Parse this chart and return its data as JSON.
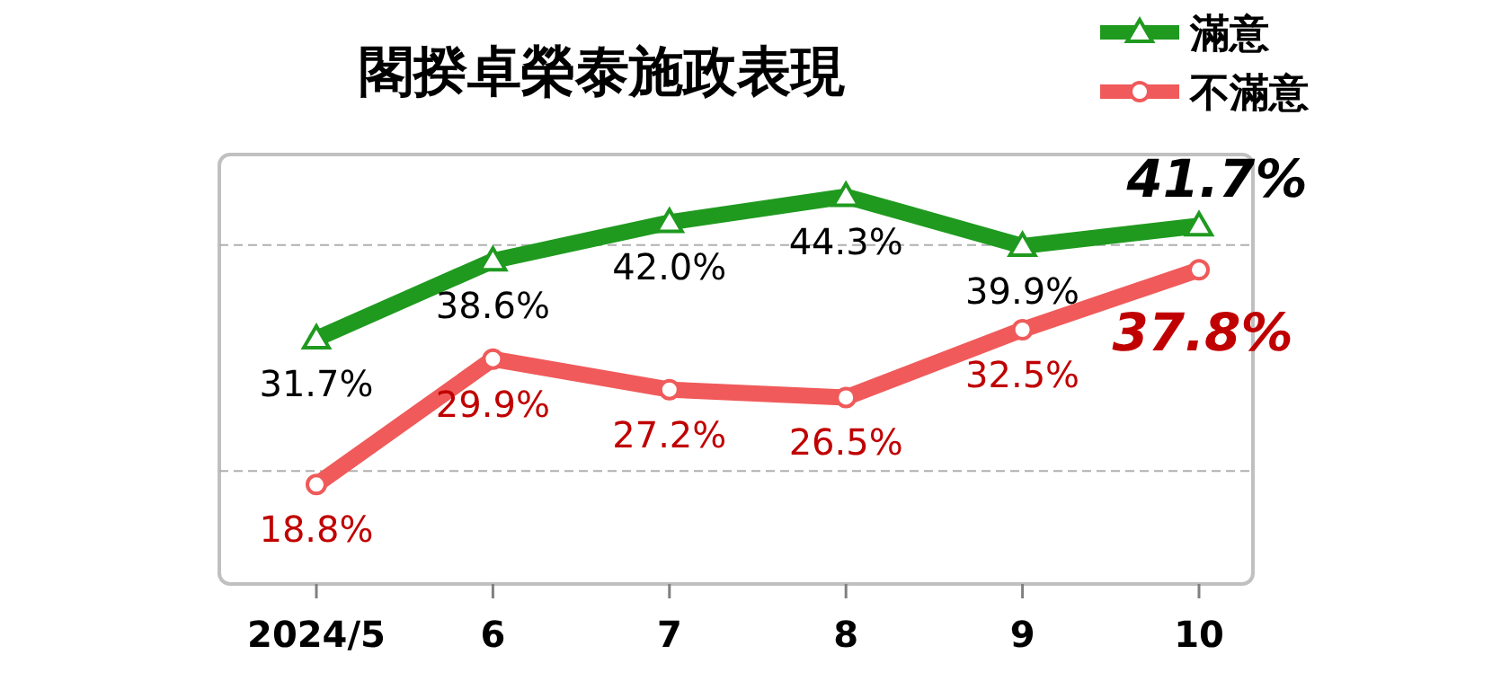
{
  "chart_data": {
    "type": "line",
    "title": "閣揆卓榮泰施政表現",
    "categories": [
      "2024/5",
      "6",
      "7",
      "8",
      "9",
      "10"
    ],
    "series": [
      {
        "name": "滿意",
        "color": "#1f9a1f",
        "marker": "triangle",
        "values": [
          31.7,
          38.6,
          42.0,
          44.3,
          39.9,
          41.7
        ],
        "value_labels": [
          "31.7%",
          "38.6%",
          "42.0%",
          "44.3%",
          "39.9%",
          "41.7%"
        ]
      },
      {
        "name": "不滿意",
        "color": "#f05a5a",
        "marker": "circle",
        "values": [
          18.8,
          29.9,
          27.2,
          26.5,
          32.5,
          37.8
        ],
        "value_labels": [
          "18.8%",
          "29.9%",
          "27.2%",
          "26.5%",
          "32.5%",
          "37.8%"
        ]
      }
    ],
    "ylim": [
      10,
      48
    ],
    "ref_lines": [
      {
        "axis": "y",
        "value": 20,
        "color": "#b0b0b0",
        "line_style": "dashed"
      },
      {
        "axis": "y",
        "value": 40,
        "color": "#b0b0b0",
        "line_style": "dashed"
      }
    ],
    "tick_labels": "x",
    "legend": "top right",
    "line_style": "solid"
  }
}
